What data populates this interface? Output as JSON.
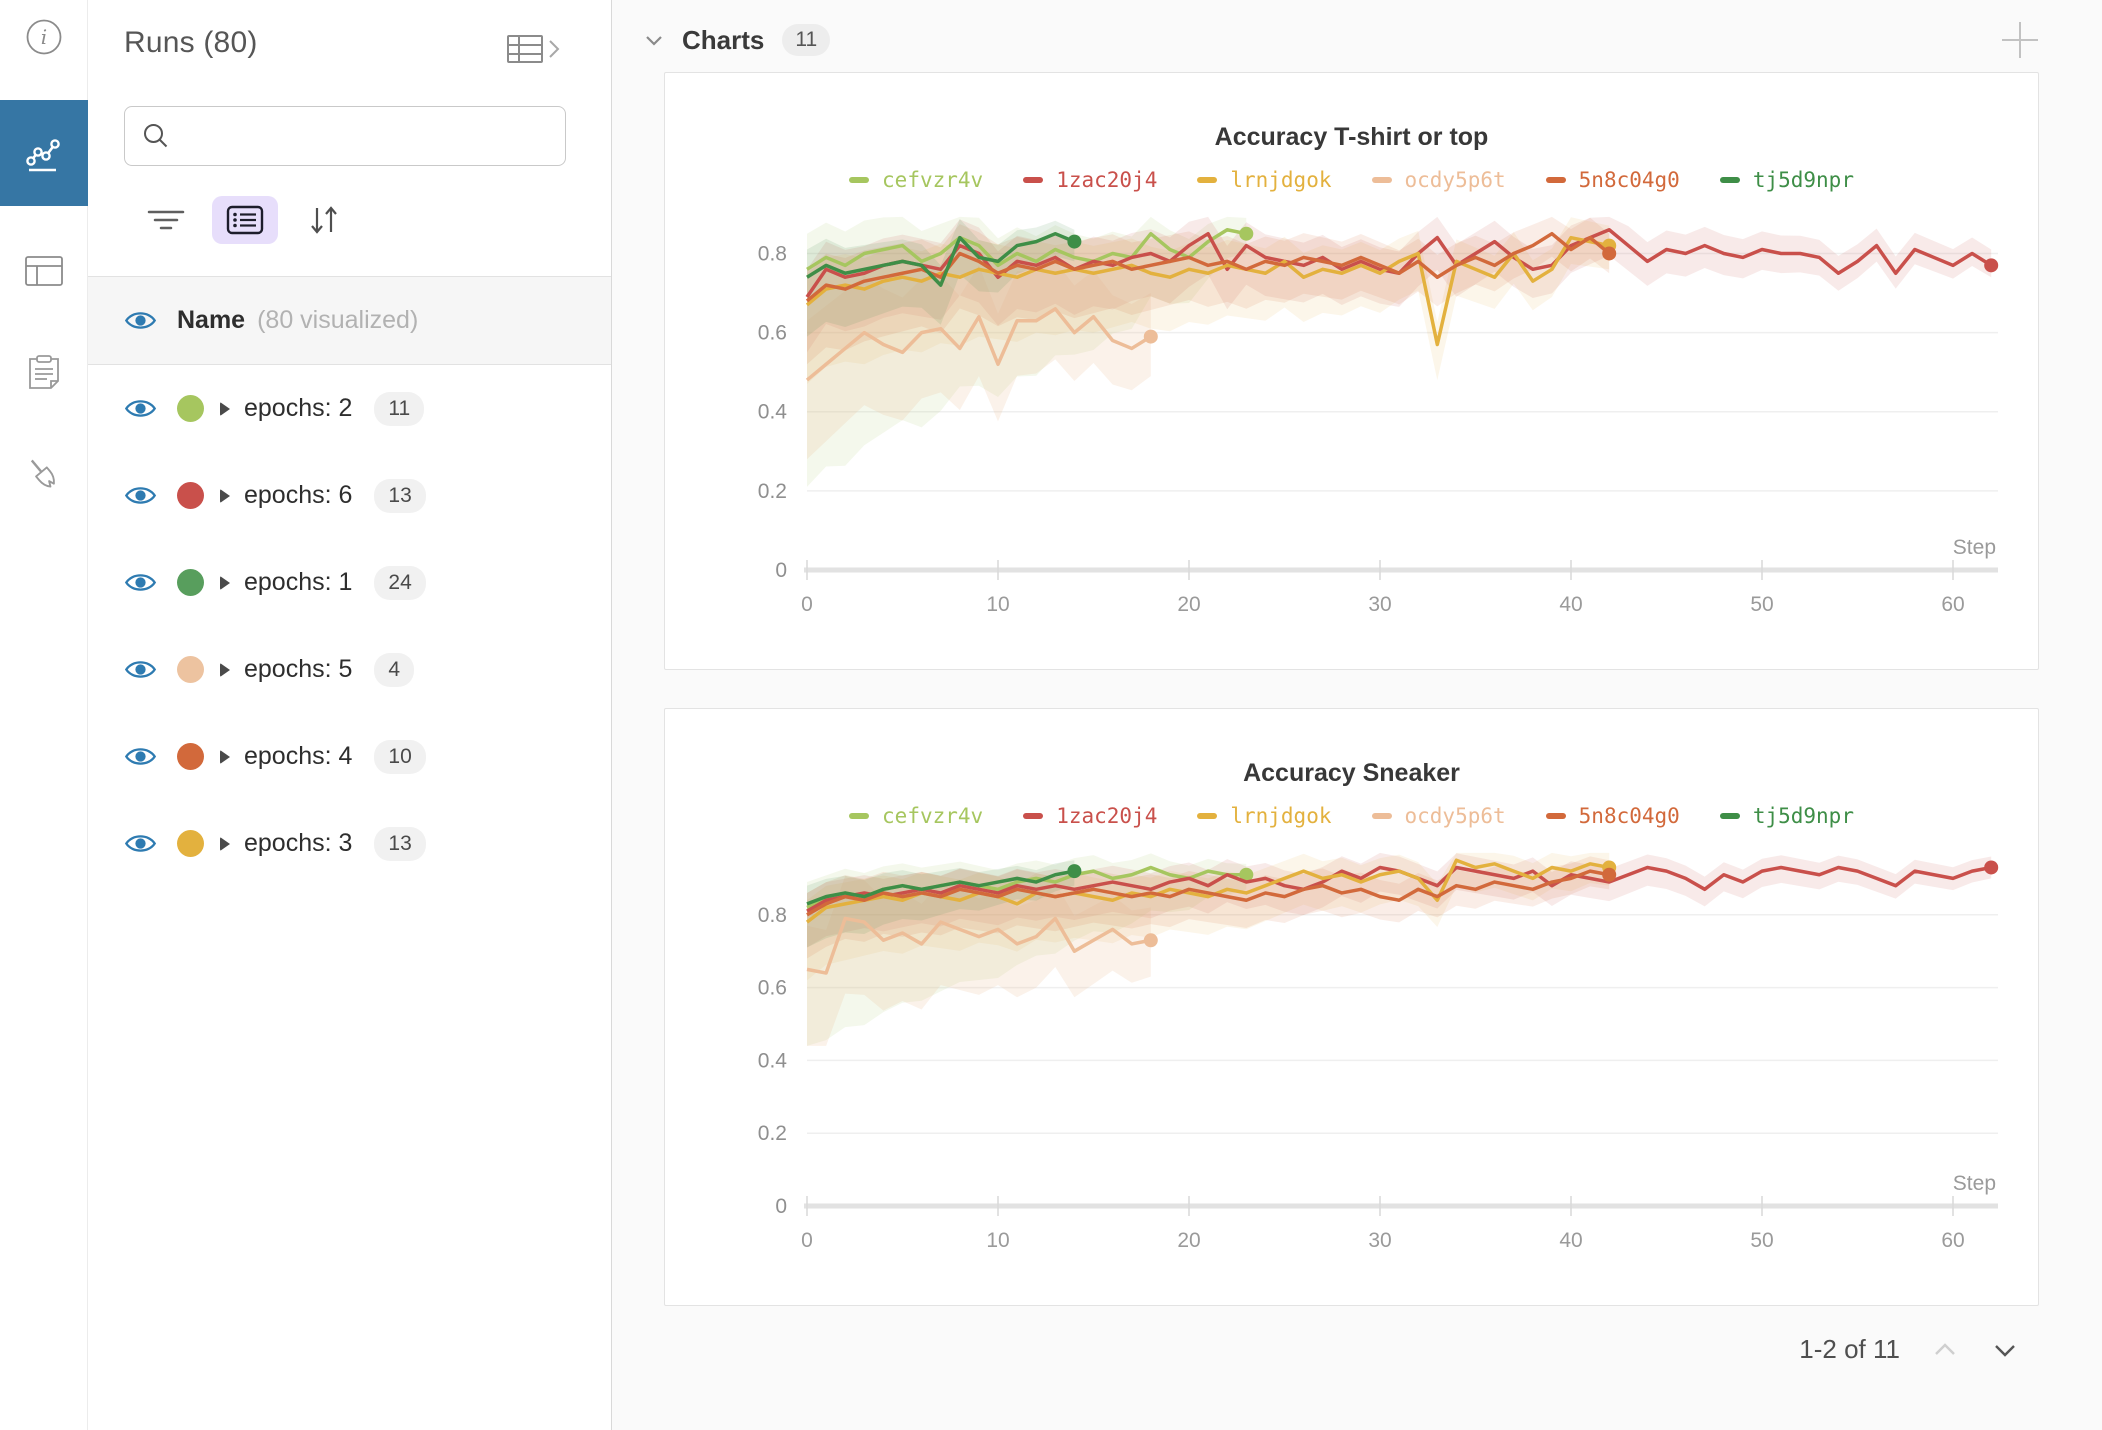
{
  "rail": {
    "items": [
      {
        "name": "info"
      },
      {
        "name": "charts",
        "active": true
      },
      {
        "name": "table"
      },
      {
        "name": "logs"
      },
      {
        "name": "sweeps"
      }
    ],
    "active_color": "#3676a4"
  },
  "sidebar": {
    "title": "Runs (80)",
    "search_placeholder": "",
    "name_row": {
      "label": "Name",
      "sub": "(80 visualized)"
    },
    "rows": [
      {
        "label": "epochs: 2",
        "count": "11",
        "color": "#a6c65f"
      },
      {
        "label": "epochs: 6",
        "count": "13",
        "color": "#c9504b"
      },
      {
        "label": "epochs: 1",
        "count": "24",
        "color": "#589e5d"
      },
      {
        "label": "epochs: 5",
        "count": "4",
        "color": "#edc3a0"
      },
      {
        "label": "epochs: 4",
        "count": "10",
        "color": "#d2693b"
      },
      {
        "label": "epochs: 3",
        "count": "13",
        "color": "#e3b13e"
      }
    ]
  },
  "main": {
    "header": {
      "title": "Charts",
      "badge": "11"
    },
    "pagination": {
      "label": "1-2 of 11"
    }
  },
  "chart_data": [
    {
      "type": "line",
      "title": "Accuracy T-shirt or top",
      "xlabel": "Step",
      "ylabel": "",
      "xlim": [
        0,
        62
      ],
      "ylim": [
        0,
        0.92
      ],
      "xticks": [
        0,
        10,
        20,
        30,
        40,
        50,
        60
      ],
      "yticks": [
        0,
        0.2,
        0.4,
        0.6,
        0.8
      ],
      "grid": true,
      "legend_position": "top",
      "band_floor": 0.12,
      "series": [
        {
          "name": "cefvzr4v",
          "color": "#a6c65f",
          "band": [
            0.55,
            0.05,
            0.09,
            0.04
          ],
          "band_opacity": 0.12,
          "values": [
            0.76,
            0.79,
            0.77,
            0.8,
            0.81,
            0.82,
            0.78,
            0.8,
            0.84,
            0.82,
            0.77,
            0.8,
            0.78,
            0.81,
            0.79,
            0.78,
            0.8,
            0.79,
            0.85,
            0.81,
            0.79,
            0.83,
            0.86,
            0.85
          ]
        },
        {
          "name": "1zac20j4",
          "color": "#c9504b",
          "band": [
            0.14,
            0.03,
            0.07,
            0.04
          ],
          "band_opacity": 0.12,
          "values": [
            0.69,
            0.76,
            0.74,
            0.75,
            0.77,
            0.78,
            0.77,
            0.76,
            0.82,
            0.8,
            0.74,
            0.78,
            0.77,
            0.79,
            0.76,
            0.78,
            0.77,
            0.79,
            0.8,
            0.78,
            0.82,
            0.85,
            0.76,
            0.82,
            0.79,
            0.78,
            0.77,
            0.79,
            0.76,
            0.78,
            0.76,
            0.75,
            0.8,
            0.84,
            0.77,
            0.8,
            0.83,
            0.79,
            0.76,
            0.77,
            0.82,
            0.84,
            0.86,
            0.82,
            0.78,
            0.81,
            0.8,
            0.82,
            0.8,
            0.79,
            0.81,
            0.8,
            0.8,
            0.79,
            0.75,
            0.78,
            0.82,
            0.75,
            0.81,
            0.79,
            0.77,
            0.8,
            0.77
          ]
        },
        {
          "name": "lrnjdgok",
          "color": "#e3b13e",
          "band": [
            0.2,
            0.06,
            0.08,
            0.05
          ],
          "band_opacity": 0.11,
          "values": [
            0.67,
            0.71,
            0.72,
            0.71,
            0.73,
            0.74,
            0.73,
            0.75,
            0.74,
            0.76,
            0.75,
            0.74,
            0.76,
            0.75,
            0.76,
            0.75,
            0.76,
            0.77,
            0.75,
            0.74,
            0.76,
            0.75,
            0.77,
            0.76,
            0.75,
            0.78,
            0.74,
            0.76,
            0.75,
            0.77,
            0.75,
            0.78,
            0.8,
            0.57,
            0.78,
            0.76,
            0.74,
            0.8,
            0.73,
            0.76,
            0.84,
            0.83,
            0.82
          ]
        },
        {
          "name": "ocdy5p6t",
          "color": "#edbd98",
          "band": [
            0.2,
            0.1,
            0.15,
            0.11
          ],
          "band_opacity": 0.2,
          "values": [
            0.48,
            0.52,
            0.56,
            0.6,
            0.57,
            0.55,
            0.6,
            0.61,
            0.56,
            0.64,
            0.52,
            0.63,
            0.63,
            0.66,
            0.6,
            0.64,
            0.58,
            0.56,
            0.59
          ]
        },
        {
          "name": "5n8c04g0",
          "color": "#d2693b",
          "band": [
            0.16,
            0.05,
            0.08,
            0.05
          ],
          "band_opacity": 0.12,
          "values": [
            0.68,
            0.72,
            0.71,
            0.73,
            0.74,
            0.75,
            0.76,
            0.74,
            0.8,
            0.78,
            0.75,
            0.77,
            0.76,
            0.78,
            0.76,
            0.77,
            0.78,
            0.76,
            0.77,
            0.78,
            0.79,
            0.77,
            0.78,
            0.76,
            0.78,
            0.77,
            0.79,
            0.78,
            0.77,
            0.79,
            0.77,
            0.75,
            0.78,
            0.74,
            0.77,
            0.79,
            0.77,
            0.8,
            0.82,
            0.85,
            0.81,
            0.84,
            0.8
          ]
        },
        {
          "name": "tj5d9npr",
          "color": "#3e8e47",
          "band": [
            0.15,
            0.05,
            0.07,
            0.03
          ],
          "band_opacity": 0.12,
          "values": [
            0.74,
            0.77,
            0.75,
            0.76,
            0.77,
            0.78,
            0.77,
            0.72,
            0.84,
            0.79,
            0.78,
            0.82,
            0.83,
            0.85,
            0.83
          ]
        }
      ]
    },
    {
      "type": "line",
      "title": "Accuracy Sneaker",
      "xlabel": "Step",
      "ylabel": "",
      "xlim": [
        0,
        62
      ],
      "ylim": [
        0,
        1.0
      ],
      "xticks": [
        0,
        10,
        20,
        30,
        40,
        50,
        60
      ],
      "yticks": [
        0,
        0.2,
        0.4,
        0.6,
        0.8
      ],
      "grid": true,
      "legend_position": "top",
      "band_floor": 0.44,
      "series": [
        {
          "name": "cefvzr4v",
          "color": "#a6c65f",
          "band": [
            0.4,
            0.04,
            0.07,
            0.03
          ],
          "band_opacity": 0.12,
          "values": [
            0.82,
            0.84,
            0.86,
            0.85,
            0.87,
            0.88,
            0.87,
            0.88,
            0.89,
            0.88,
            0.87,
            0.89,
            0.9,
            0.89,
            0.91,
            0.92,
            0.9,
            0.91,
            0.93,
            0.91,
            0.9,
            0.92,
            0.91,
            0.91
          ]
        },
        {
          "name": "1zac20j4",
          "color": "#c9504b",
          "band": [
            0.1,
            0.03,
            0.05,
            0.03
          ],
          "band_opacity": 0.12,
          "values": [
            0.81,
            0.84,
            0.85,
            0.86,
            0.85,
            0.86,
            0.87,
            0.86,
            0.88,
            0.87,
            0.86,
            0.88,
            0.87,
            0.88,
            0.87,
            0.88,
            0.89,
            0.88,
            0.87,
            0.89,
            0.9,
            0.88,
            0.91,
            0.89,
            0.9,
            0.88,
            0.87,
            0.89,
            0.92,
            0.9,
            0.93,
            0.92,
            0.9,
            0.88,
            0.93,
            0.92,
            0.91,
            0.9,
            0.92,
            0.88,
            0.91,
            0.9,
            0.89,
            0.91,
            0.93,
            0.92,
            0.9,
            0.87,
            0.91,
            0.89,
            0.92,
            0.93,
            0.92,
            0.91,
            0.93,
            0.92,
            0.9,
            0.88,
            0.92,
            0.91,
            0.9,
            0.92,
            0.93
          ]
        },
        {
          "name": "lrnjdgok",
          "color": "#e3b13e",
          "band": [
            0.16,
            0.05,
            0.06,
            0.04
          ],
          "band_opacity": 0.11,
          "values": [
            0.78,
            0.82,
            0.83,
            0.84,
            0.85,
            0.84,
            0.86,
            0.85,
            0.84,
            0.86,
            0.85,
            0.83,
            0.86,
            0.85,
            0.86,
            0.85,
            0.84,
            0.86,
            0.85,
            0.87,
            0.86,
            0.85,
            0.87,
            0.86,
            0.88,
            0.9,
            0.92,
            0.9,
            0.91,
            0.89,
            0.91,
            0.92,
            0.9,
            0.84,
            0.95,
            0.93,
            0.94,
            0.92,
            0.9,
            0.93,
            0.92,
            0.94,
            0.93
          ]
        },
        {
          "name": "ocdy5p6t",
          "color": "#edbd98",
          "band": [
            0.22,
            0.1,
            0.12,
            0.09
          ],
          "band_opacity": 0.2,
          "values": [
            0.65,
            0.64,
            0.79,
            0.78,
            0.73,
            0.75,
            0.72,
            0.78,
            0.76,
            0.74,
            0.76,
            0.72,
            0.74,
            0.79,
            0.7,
            0.73,
            0.76,
            0.72,
            0.73
          ]
        },
        {
          "name": "5n8c04g0",
          "color": "#d2693b",
          "band": [
            0.12,
            0.04,
            0.06,
            0.04
          ],
          "band_opacity": 0.12,
          "values": [
            0.8,
            0.83,
            0.85,
            0.84,
            0.86,
            0.85,
            0.86,
            0.85,
            0.87,
            0.86,
            0.85,
            0.87,
            0.86,
            0.85,
            0.86,
            0.87,
            0.86,
            0.85,
            0.86,
            0.85,
            0.87,
            0.86,
            0.85,
            0.84,
            0.86,
            0.85,
            0.87,
            0.88,
            0.86,
            0.87,
            0.85,
            0.84,
            0.87,
            0.85,
            0.88,
            0.87,
            0.89,
            0.88,
            0.87,
            0.89,
            0.9,
            0.92,
            0.91
          ]
        },
        {
          "name": "tj5d9npr",
          "color": "#3e8e47",
          "band": [
            0.12,
            0.04,
            0.05,
            0.03
          ],
          "band_opacity": 0.12,
          "values": [
            0.83,
            0.85,
            0.86,
            0.85,
            0.87,
            0.88,
            0.87,
            0.88,
            0.89,
            0.88,
            0.89,
            0.9,
            0.89,
            0.91,
            0.92
          ]
        }
      ]
    }
  ]
}
